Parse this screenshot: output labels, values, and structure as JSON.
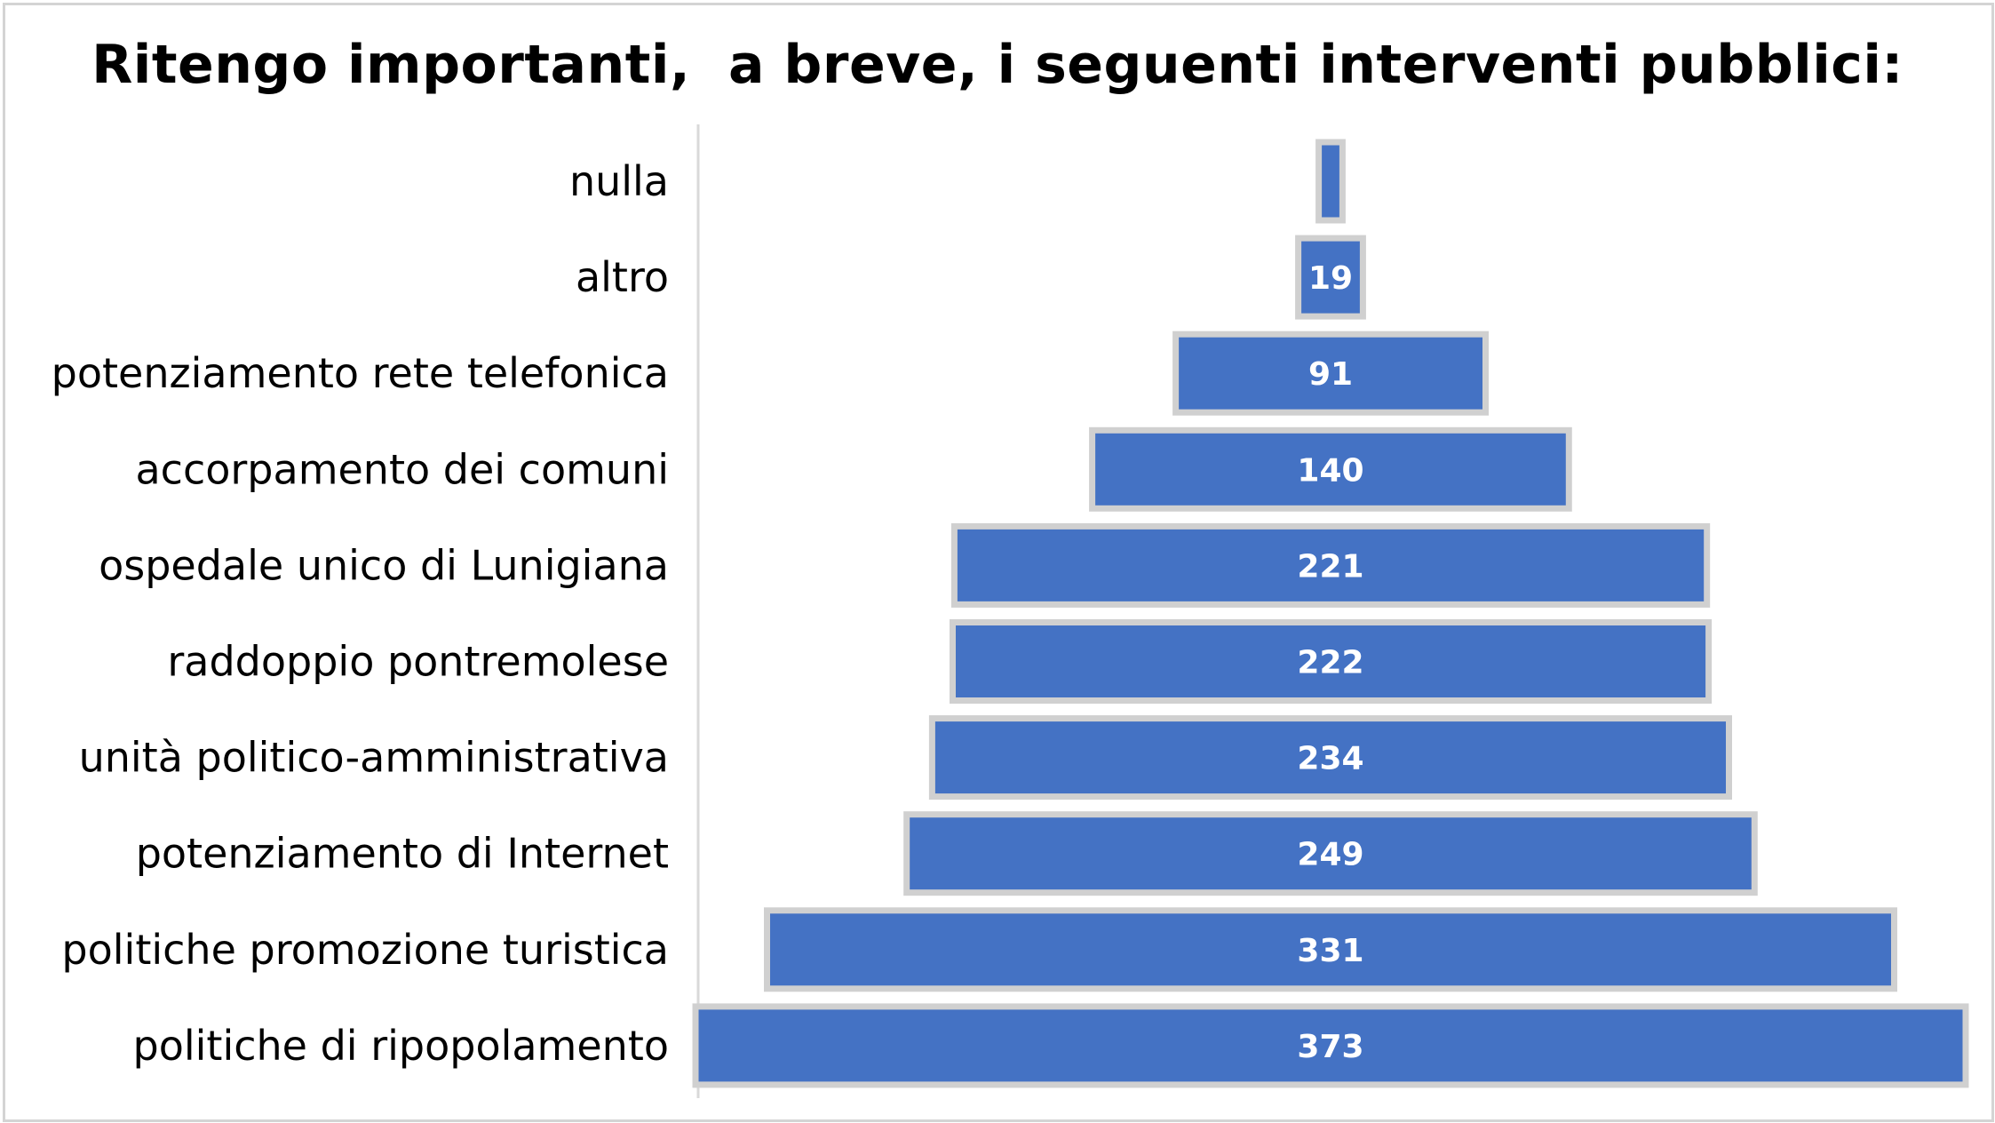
{
  "chart_data": {
    "type": "bar",
    "orientation": "horizontal",
    "style": "centered-funnel",
    "title": "Ritengo importanti,  a breve, i seguenti interventi pubblici:",
    "xlabel": "",
    "ylabel": "",
    "grid": false,
    "legend": "none",
    "categories": [
      "nulla",
      "altro",
      "potenziamento rete telefonica",
      "accorpamento dei comuni",
      "ospedale unico di Lunigiana",
      "raddoppio pontremolese",
      "unità politico-amministrativa",
      "potenziamento di Internet",
      "politiche promozione turistica",
      "politiche di ripopolamento"
    ],
    "values": [
      7,
      19,
      91,
      140,
      221,
      222,
      234,
      249,
      331,
      373
    ],
    "data_labels": [
      "",
      "19",
      "91",
      "140",
      "221",
      "222",
      "234",
      "249",
      "331",
      "373"
    ],
    "colors": {
      "bar_fill": "#4472c4",
      "bar_border": "#d0d0d0",
      "label_text": "#ffffff"
    }
  }
}
